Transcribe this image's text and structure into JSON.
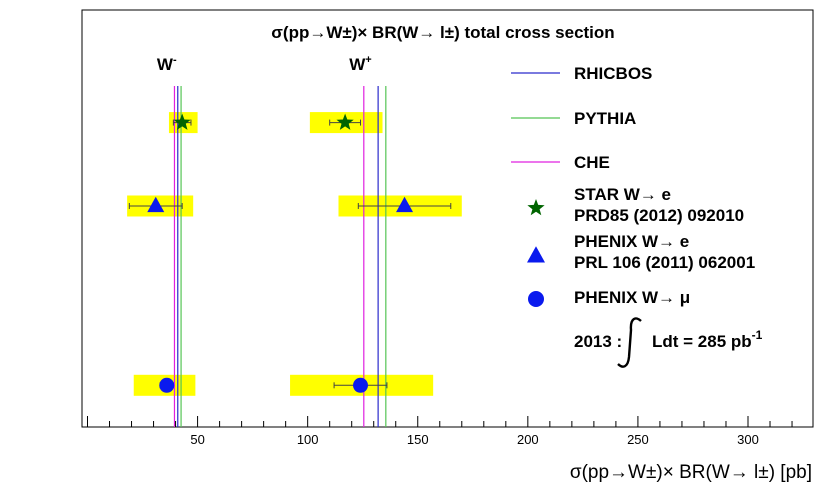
{
  "chart_data": {
    "type": "scatter",
    "title": "σ(pp→W±)× BR(W→ l±) total cross section",
    "xlabel": "σ(pp→W±)× BR(W→ l±) [pb]",
    "ylabel": "",
    "xlim": [
      0,
      330
    ],
    "ylim": [
      0,
      1
    ],
    "grid": false,
    "legend_position": "right",
    "x_ticks": [
      50,
      100,
      150,
      200,
      250,
      300
    ],
    "x_tick_labels": [
      "50",
      "100",
      "150",
      "200",
      "250",
      "300"
    ],
    "group_labels": [
      {
        "text": "W",
        "sup": "-",
        "x": 36
      },
      {
        "text": "W",
        "sup": "+",
        "x": 124
      }
    ],
    "theory_lines": [
      {
        "name": "RHICBOS",
        "color": "#2a2acc",
        "values": [
          41,
          132
        ]
      },
      {
        "name": "PYTHIA",
        "color": "#55c455",
        "values": [
          42.5,
          135.5
        ]
      },
      {
        "name": "CHE",
        "color": "#e020e0",
        "values": [
          39.5,
          125.5
        ]
      }
    ],
    "measurements": [
      {
        "name": "STAR W→ e",
        "reference": "PRD85 (2012) 092010",
        "marker": "star",
        "color": "#006400",
        "points": [
          {
            "x": 43,
            "stat": 4,
            "sys_low": 37,
            "sys_high": 50,
            "row": 0.73
          },
          {
            "x": 117,
            "stat": 7,
            "sys_low": 101,
            "sys_high": 134,
            "row": 0.73
          }
        ]
      },
      {
        "name": "PHENIX W→ e",
        "reference": "PRL 106 (2011) 062001",
        "marker": "triangle",
        "color": "#0a1aee",
        "points": [
          {
            "x": 31,
            "stat": 12,
            "sys_low": 18,
            "sys_high": 48,
            "row": 0.53
          },
          {
            "x": 144,
            "stat": 21,
            "sys_low": 114,
            "sys_high": 170,
            "row": 0.53
          }
        ]
      },
      {
        "name": "PHENIX W→ μ",
        "reference": "",
        "marker": "circle",
        "color": "#0a1aee",
        "points": [
          {
            "x": 36,
            "stat": 3,
            "sys_low": 21,
            "sys_high": 49,
            "row": 0.1
          },
          {
            "x": 124,
            "stat": 12,
            "sys_low": 92,
            "sys_high": 157,
            "row": 0.1
          }
        ]
      }
    ],
    "annotation": {
      "prefix": "2013 :",
      "integral": "Ldt =  285 pb",
      "sup": "-1"
    },
    "marker_color": "#ffff00"
  }
}
